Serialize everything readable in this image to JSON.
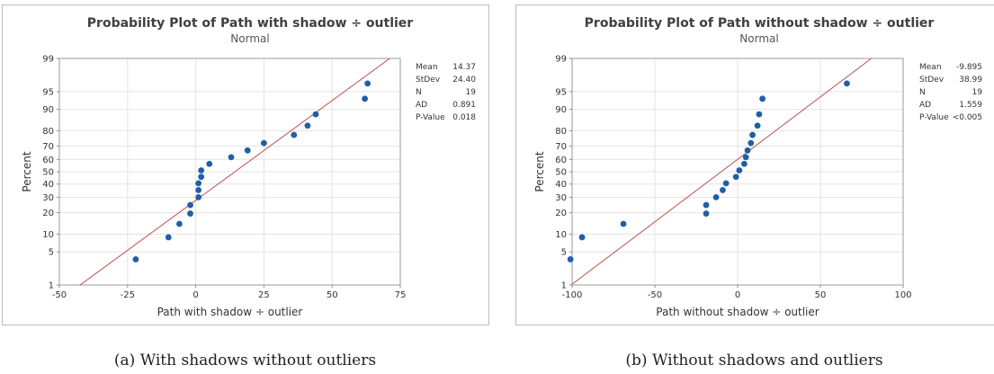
{
  "chart_data": [
    {
      "type": "scatter",
      "title": "Probability Plot of Path with shadow ÷ outlier",
      "subtitle": "Normal",
      "xlabel": "Path with shadow ÷ outlier",
      "ylabel": "Percent",
      "xlim": [
        -50,
        75
      ],
      "ylim_percent": [
        1,
        99
      ],
      "y_scale": "normal-probability",
      "grid": true,
      "x_ticks": [
        -50,
        -25,
        0,
        25,
        50,
        75
      ],
      "y_ticks": [
        1,
        5,
        10,
        20,
        30,
        40,
        50,
        60,
        70,
        80,
        90,
        95,
        99
      ],
      "stats": [
        {
          "label": "Mean",
          "value": "14.37"
        },
        {
          "label": "StDev",
          "value": "24.40"
        },
        {
          "label": "N",
          "value": "19"
        },
        {
          "label": "AD",
          "value": "0.891"
        },
        {
          "label": "P-Value",
          "value": "0.018"
        }
      ],
      "points": [
        {
          "x": -22,
          "p": 3.6
        },
        {
          "x": -10,
          "p": 8.9
        },
        {
          "x": -6,
          "p": 14.2
        },
        {
          "x": -2,
          "p": 19.5
        },
        {
          "x": -2,
          "p": 24.7
        },
        {
          "x": 1,
          "p": 30.0
        },
        {
          "x": 1,
          "p": 35.3
        },
        {
          "x": 1,
          "p": 40.6
        },
        {
          "x": 2,
          "p": 45.8
        },
        {
          "x": 2,
          "p": 51.1
        },
        {
          "x": 5,
          "p": 56.4
        },
        {
          "x": 13,
          "p": 61.7
        },
        {
          "x": 19,
          "p": 66.9
        },
        {
          "x": 25,
          "p": 72.2
        },
        {
          "x": 36,
          "p": 77.5
        },
        {
          "x": 41,
          "p": 82.8
        },
        {
          "x": 44,
          "p": 88.1
        },
        {
          "x": 62,
          "p": 93.3
        },
        {
          "x": 63,
          "p": 96.5
        }
      ],
      "fit_line": {
        "mean": 14.37,
        "stdev": 24.4,
        "color": "#c0504d"
      },
      "point_color": "#1f5fa5"
    },
    {
      "type": "scatter",
      "title": "Probability Plot of Path without shadow ÷ outlier",
      "subtitle": "Normal",
      "xlabel": "Path without shadow ÷ outlier",
      "ylabel": "Percent",
      "xlim": [
        -100,
        100
      ],
      "ylim_percent": [
        1,
        99
      ],
      "y_scale": "normal-probability",
      "grid": true,
      "x_ticks": [
        -100,
        -50,
        0,
        50,
        100
      ],
      "y_ticks": [
        1,
        5,
        10,
        20,
        30,
        40,
        50,
        60,
        70,
        80,
        90,
        95,
        99
      ],
      "stats": [
        {
          "label": "Mean",
          "value": "-9.895"
        },
        {
          "label": "StDev",
          "value": "38.99"
        },
        {
          "label": "N",
          "value": "19"
        },
        {
          "label": "AD",
          "value": "1.559"
        },
        {
          "label": "P-Value",
          "value": "<0.005"
        }
      ],
      "points": [
        {
          "x": -101,
          "p": 3.6
        },
        {
          "x": -94,
          "p": 8.9
        },
        {
          "x": -69,
          "p": 14.2
        },
        {
          "x": -19,
          "p": 19.5
        },
        {
          "x": -19,
          "p": 24.7
        },
        {
          "x": -13,
          "p": 30.0
        },
        {
          "x": -9,
          "p": 35.3
        },
        {
          "x": -7,
          "p": 40.6
        },
        {
          "x": -1,
          "p": 45.8
        },
        {
          "x": 1,
          "p": 51.1
        },
        {
          "x": 4,
          "p": 56.4
        },
        {
          "x": 5,
          "p": 61.7
        },
        {
          "x": 6,
          "p": 66.9
        },
        {
          "x": 8,
          "p": 72.2
        },
        {
          "x": 9,
          "p": 77.5
        },
        {
          "x": 12,
          "p": 82.8
        },
        {
          "x": 13,
          "p": 88.1
        },
        {
          "x": 15,
          "p": 93.3
        },
        {
          "x": 66,
          "p": 96.5
        }
      ],
      "fit_line": {
        "mean": -9.895,
        "stdev": 38.99,
        "color": "#c0504d"
      },
      "point_color": "#1f5fa5"
    }
  ],
  "captions": {
    "a": "(a) With shadows without outliers",
    "b": "(b) Without shadows and outliers"
  }
}
